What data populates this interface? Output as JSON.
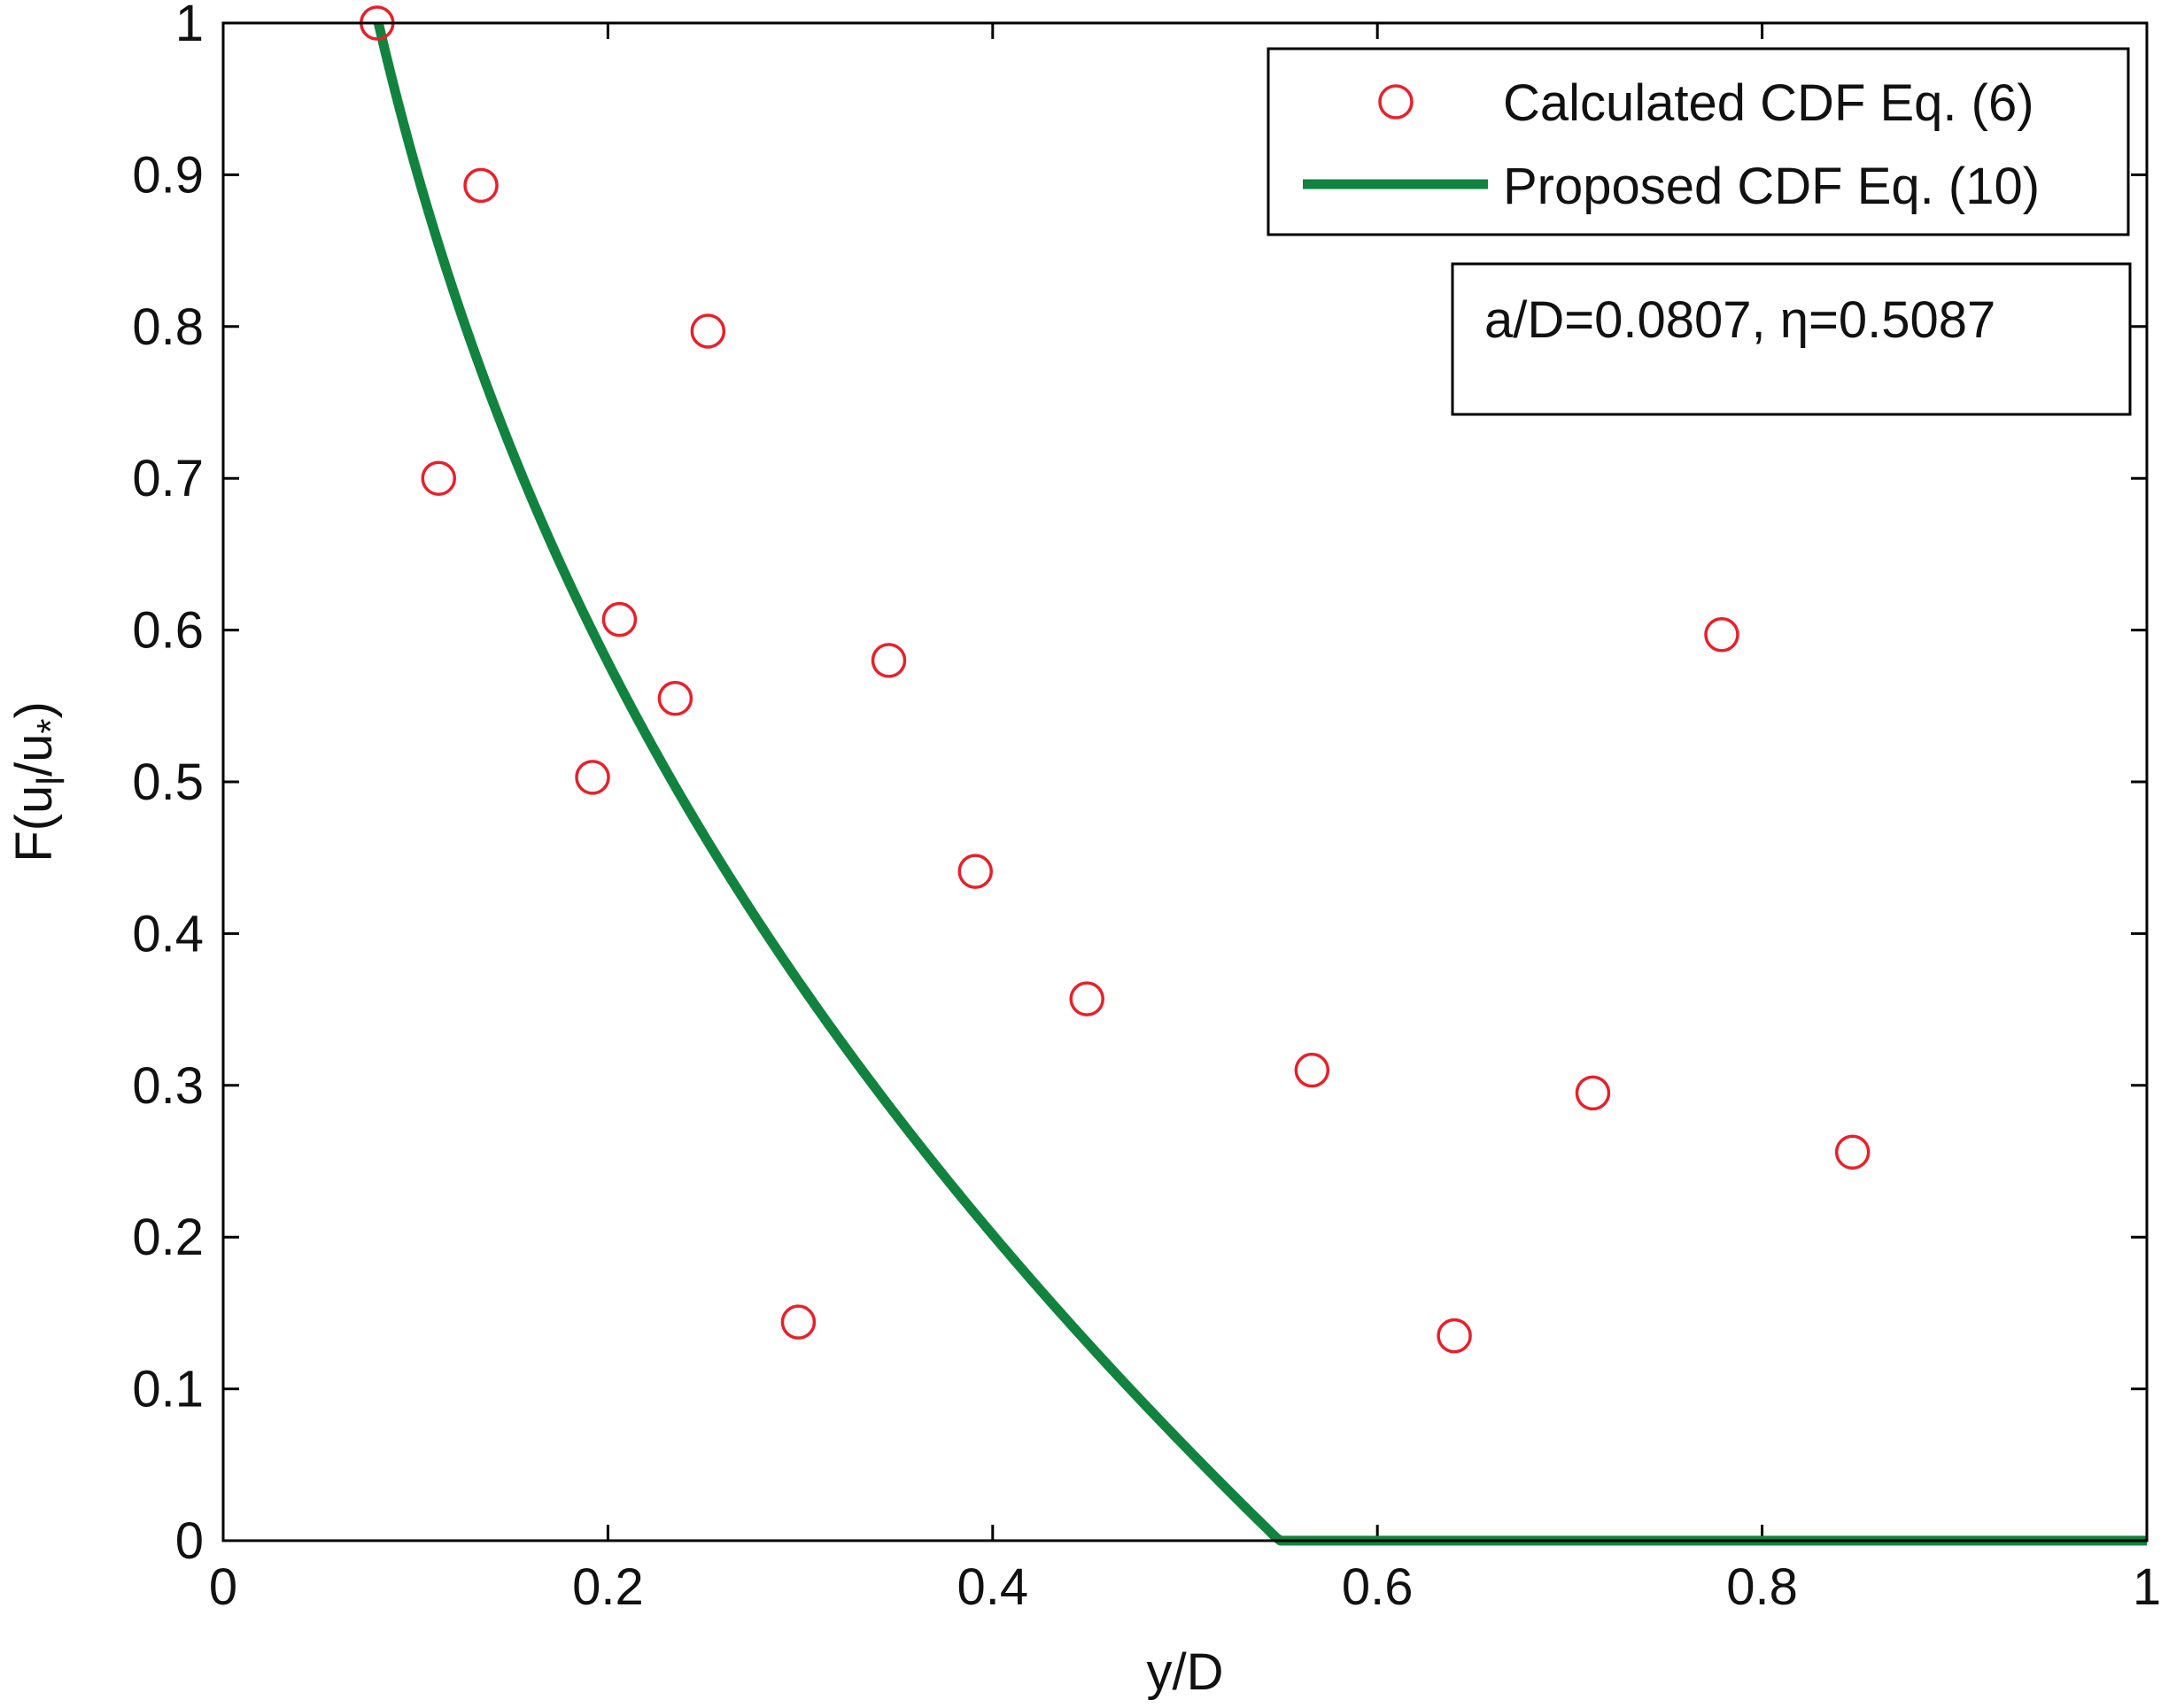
{
  "chart_data": {
    "type": "scatter",
    "xlabel": "y/D",
    "ylabel": "F(u",
    "ylabel_sub1": "l",
    "ylabel_mid": "/u",
    "ylabel_sub2": "*",
    "ylabel_end": ")",
    "xlim": [
      0,
      1
    ],
    "ylim": [
      0,
      1
    ],
    "xticks": [
      0,
      0.2,
      0.4,
      0.6,
      0.8,
      1
    ],
    "xtick_labels": [
      "0",
      "0.2",
      "0.4",
      "0.6",
      "0.8",
      "1"
    ],
    "yticks": [
      0,
      0.1,
      0.2,
      0.3,
      0.4,
      0.5,
      0.6,
      0.7,
      0.8,
      0.9,
      1
    ],
    "ytick_labels": [
      "0",
      "0.1",
      "0.2",
      "0.3",
      "0.4",
      "0.5",
      "0.6",
      "0.7",
      "0.8",
      "0.9",
      "1"
    ],
    "grid": false,
    "legend_position": "top-right",
    "series": [
      {
        "name": "Calculated CDF Eq. (6)",
        "kind": "markers",
        "marker": "open-circle",
        "color": "#e8202a",
        "points": [
          [
            0.08,
            1.0
          ],
          [
            0.134,
            0.893
          ],
          [
            0.252,
            0.797
          ],
          [
            0.112,
            0.7
          ],
          [
            0.206,
            0.607
          ],
          [
            0.346,
            0.58
          ],
          [
            0.235,
            0.555
          ],
          [
            0.192,
            0.503
          ],
          [
            0.391,
            0.441
          ],
          [
            0.449,
            0.357
          ],
          [
            0.566,
            0.31
          ],
          [
            0.712,
            0.295
          ],
          [
            0.847,
            0.256
          ],
          [
            0.299,
            0.144
          ],
          [
            0.64,
            0.135
          ],
          [
            0.779,
            0.597
          ]
        ]
      },
      {
        "name": "Proposed CDF Eq. (10)",
        "kind": "line",
        "color": "#12833f",
        "a_over_D": 0.0807,
        "eta": 0.5087
      }
    ],
    "annotation": "a/D=0.0807, η=0.5087"
  }
}
